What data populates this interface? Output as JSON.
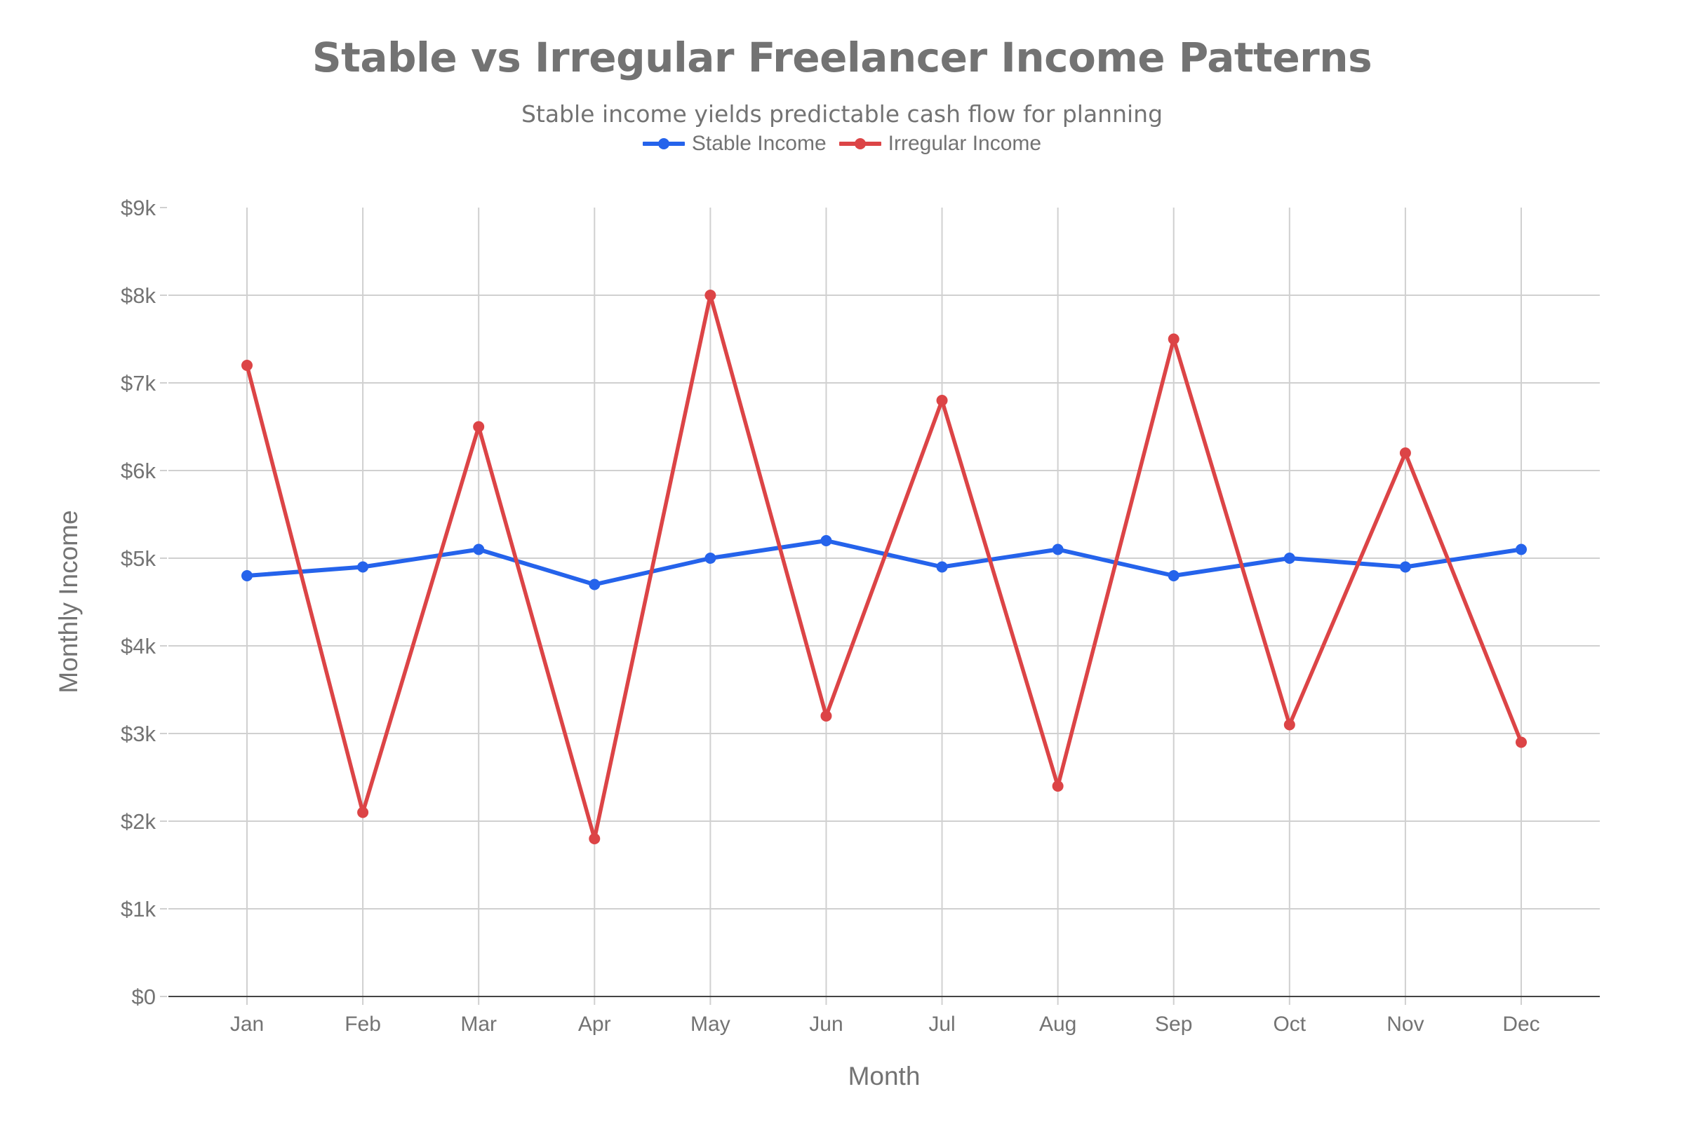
{
  "header": {
    "title": "Stable vs Irregular Freelancer Income Patterns",
    "subtitle": "Stable income yields predictable cash flow for planning"
  },
  "legend": {
    "items": [
      {
        "label": "Stable Income",
        "color": "#2563eb"
      },
      {
        "label": "Irregular Income",
        "color": "#dc4446"
      }
    ]
  },
  "axes": {
    "x_title": "Month",
    "y_title": "Monthly Income",
    "y_ticks": [
      "$0",
      "$1k",
      "$2k",
      "$3k",
      "$4k",
      "$5k",
      "$6k",
      "$7k",
      "$8k",
      "$9k"
    ]
  },
  "colors": {
    "text": "#737373",
    "grid": "#d0d0d0",
    "axis_line": "#444444",
    "stable": "#2563eb",
    "irregular": "#dc4446"
  },
  "chart_data": {
    "type": "line",
    "title": "Stable vs Irregular Freelancer Income Patterns",
    "subtitle": "Stable income yields predictable cash flow for planning",
    "xlabel": "Month",
    "ylabel": "Monthly Income",
    "categories": [
      "Jan",
      "Feb",
      "Mar",
      "Apr",
      "May",
      "Jun",
      "Jul",
      "Aug",
      "Sep",
      "Oct",
      "Nov",
      "Dec"
    ],
    "series": [
      {
        "name": "Stable Income",
        "color": "#2563eb",
        "values": [
          4800,
          4900,
          5100,
          4700,
          5000,
          5200,
          4900,
          5100,
          4800,
          5000,
          4900,
          5100
        ]
      },
      {
        "name": "Irregular Income",
        "color": "#dc4446",
        "values": [
          7200,
          2100,
          6500,
          1800,
          8000,
          3200,
          6800,
          2400,
          7500,
          3100,
          6200,
          2900
        ]
      }
    ],
    "ylim": [
      0,
      9000
    ],
    "ytick_step": 1000,
    "ytick_format": "$Nk",
    "grid": true,
    "legend_position": "top-center",
    "markers": true
  }
}
